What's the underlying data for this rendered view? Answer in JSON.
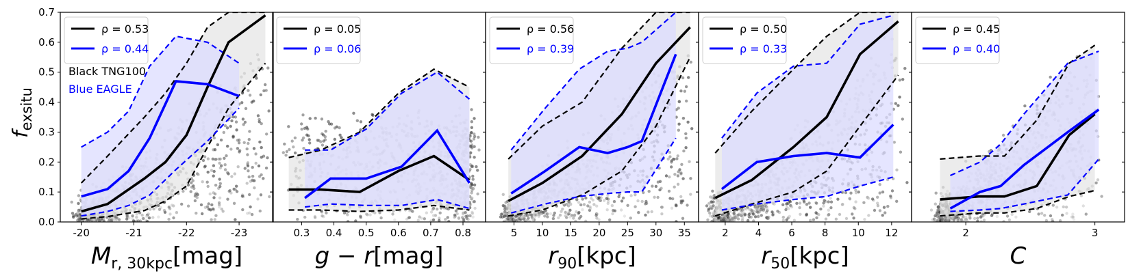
{
  "figure": {
    "ylabel_main": "f",
    "ylabel_sub": "exsitu",
    "ytick_labels": [
      "0.0",
      "0.1",
      "0.2",
      "0.3",
      "0.4",
      "0.5",
      "0.6",
      "0.7"
    ],
    "annotation_black": "Black TNG100",
    "annotation_blue": "Blue EAGLE",
    "colors": {
      "tng": "#000000",
      "eagle": "#0000ff",
      "tng_band": "#e6e6e6",
      "eagle_band": "#dcdcff"
    }
  },
  "chart_data": [
    {
      "type": "line",
      "xlabel_main": "M",
      "xlabel_sub": "r, 30kpc",
      "xlabel_unit": "[mag]",
      "xlim": [
        -19.6,
        -23.65
      ],
      "ylim": [
        0,
        0.7
      ],
      "xticks": [
        -20,
        -21,
        -22,
        -23
      ],
      "xtick_labels": [
        "-20",
        "-21",
        "-22",
        "-23"
      ],
      "legend": {
        "position": "top-left",
        "entries": [
          "ρ = 0.53",
          "ρ = 0.44"
        ]
      },
      "tng": {
        "x": [
          -20,
          -20.5,
          -21.2,
          -21.6,
          -22.0,
          -22.4,
          -22.8,
          -23.5
        ],
        "median": [
          0.035,
          0.06,
          0.145,
          0.2,
          0.29,
          0.45,
          0.6,
          0.69
        ],
        "p16": [
          0.01,
          0.018,
          0.038,
          0.07,
          0.12,
          0.25,
          0.38,
          0.53
        ],
        "p84": [
          0.13,
          0.22,
          0.35,
          0.43,
          0.53,
          0.65,
          0.7,
          0.7
        ]
      },
      "eagle": {
        "x": [
          -20,
          -20.5,
          -20.9,
          -21.3,
          -21.8,
          -22.4,
          -23.0
        ],
        "median": [
          0.085,
          0.11,
          0.17,
          0.28,
          0.47,
          0.46,
          0.42
        ],
        "p16": [
          0.02,
          0.035,
          0.055,
          0.09,
          0.175,
          0.27,
          0.38
        ],
        "p84": [
          0.25,
          0.3,
          0.37,
          0.52,
          0.62,
          0.6,
          0.53
        ]
      }
    },
    {
      "type": "line",
      "xlabel_main": "g − r",
      "xlabel_sub": "",
      "xlabel_unit": "[mag]",
      "xlim": [
        0.21,
        0.87
      ],
      "ylim": [
        0,
        0.7
      ],
      "xticks": [
        0.3,
        0.4,
        0.5,
        0.6,
        0.7,
        0.8
      ],
      "xtick_labels": [
        "0.3",
        "0.4",
        "0.5",
        "0.6",
        "0.7",
        "0.8"
      ],
      "legend": {
        "position": "top-left",
        "entries": [
          "ρ = 0.05",
          "ρ = 0.06"
        ]
      },
      "tng": {
        "x": [
          0.26,
          0.36,
          0.48,
          0.6,
          0.71,
          0.82
        ],
        "median": [
          0.108,
          0.108,
          0.1,
          0.17,
          0.22,
          0.14
        ],
        "p16": [
          0.04,
          0.04,
          0.035,
          0.04,
          0.055,
          0.04
        ],
        "p84": [
          0.215,
          0.24,
          0.3,
          0.43,
          0.51,
          0.45
        ]
      },
      "eagle": {
        "x": [
          0.31,
          0.39,
          0.5,
          0.61,
          0.72,
          0.82
        ],
        "median": [
          0.08,
          0.145,
          0.145,
          0.185,
          0.305,
          0.13
        ],
        "p16": [
          0.05,
          0.06,
          0.055,
          0.055,
          0.075,
          0.045
        ],
        "p84": [
          0.24,
          0.24,
          0.31,
          0.43,
          0.5,
          0.41
        ]
      }
    },
    {
      "type": "line",
      "xlabel_main": "r",
      "xlabel_sub": "90",
      "xlabel_unit": "[kpc]",
      "xlim": [
        0,
        37.5
      ],
      "ylim": [
        0,
        0.7
      ],
      "xticks": [
        5,
        10,
        15,
        20,
        25,
        30,
        35
      ],
      "xtick_labels": [
        "5",
        "10",
        "15",
        "20",
        "25",
        "30",
        "35"
      ],
      "legend": {
        "position": "top-left",
        "entries": [
          "ρ = 0.56",
          "ρ = 0.39"
        ]
      },
      "tng": {
        "x": [
          4,
          10,
          17,
          24,
          30,
          36
        ],
        "median": [
          0.07,
          0.13,
          0.22,
          0.36,
          0.53,
          0.65
        ],
        "p16": [
          0.02,
          0.04,
          0.09,
          0.17,
          0.32,
          0.55
        ],
        "p84": [
          0.21,
          0.32,
          0.4,
          0.58,
          0.7,
          0.7
        ]
      },
      "eagle": {
        "x": [
          4.5,
          10.5,
          16.5,
          21.5,
          25,
          27.5,
          33.5
        ],
        "median": [
          0.095,
          0.17,
          0.25,
          0.23,
          0.25,
          0.27,
          0.56
        ],
        "p16": [
          0.03,
          0.06,
          0.085,
          0.095,
          0.1,
          0.1,
          0.28
        ],
        "p84": [
          0.24,
          0.38,
          0.51,
          0.57,
          0.58,
          0.6,
          0.7
        ]
      }
    },
    {
      "type": "line",
      "xlabel_main": "r",
      "xlabel_sub": "50",
      "xlabel_unit": "[kpc]",
      "xlim": [
        0.4,
        13.2
      ],
      "ylim": [
        0,
        0.7
      ],
      "xticks": [
        2,
        4,
        6,
        8,
        10,
        12
      ],
      "xtick_labels": [
        "2",
        "4",
        "6",
        "8",
        "10",
        "12"
      ],
      "legend": {
        "position": "top-left",
        "entries": [
          "ρ = 0.50",
          "ρ = 0.33"
        ]
      },
      "tng": {
        "x": [
          1.4,
          3.6,
          6.1,
          8.1,
          10.1,
          12.4
        ],
        "median": [
          0.08,
          0.14,
          0.25,
          0.35,
          0.56,
          0.67
        ],
        "p16": [
          0.02,
          0.06,
          0.1,
          0.17,
          0.32,
          0.49
        ],
        "p84": [
          0.23,
          0.37,
          0.51,
          0.62,
          0.7,
          0.7
        ]
      },
      "eagle": {
        "x": [
          1.8,
          3.9,
          6.1,
          8.1,
          10.1,
          12.1
        ],
        "median": [
          0.11,
          0.2,
          0.22,
          0.23,
          0.215,
          0.325
        ],
        "p16": [
          0.04,
          0.06,
          0.075,
          0.085,
          0.12,
          0.15
        ],
        "p84": [
          0.28,
          0.43,
          0.52,
          0.53,
          0.66,
          0.69
        ]
      }
    },
    {
      "type": "line",
      "xlabel_main": "C",
      "xlabel_sub": "",
      "xlabel_unit": "",
      "xlim": [
        1.58,
        3.23
      ],
      "ylim": [
        0,
        0.7
      ],
      "xticks": [
        2,
        3
      ],
      "xtick_labels": [
        "2",
        "3"
      ],
      "legend": {
        "position": "top-left",
        "entries": [
          "ρ = 0.45",
          "ρ = 0.40"
        ]
      },
      "tng": {
        "x": [
          1.8,
          2.1,
          2.3,
          2.55,
          2.8,
          3.0
        ],
        "median": [
          0.075,
          0.085,
          0.085,
          0.12,
          0.29,
          0.36
        ],
        "p16": [
          0.02,
          0.03,
          0.03,
          0.045,
          0.085,
          0.105
        ],
        "p84": [
          0.21,
          0.22,
          0.22,
          0.34,
          0.53,
          0.59
        ]
      },
      "eagle": {
        "x": [
          1.88,
          2.11,
          2.27,
          2.45,
          2.79,
          3.03
        ],
        "median": [
          0.045,
          0.1,
          0.12,
          0.19,
          0.3,
          0.375
        ],
        "p16": [
          0.035,
          0.04,
          0.045,
          0.06,
          0.09,
          0.21
        ],
        "p84": [
          0.155,
          0.2,
          0.26,
          0.36,
          0.53,
          0.57
        ]
      }
    }
  ]
}
